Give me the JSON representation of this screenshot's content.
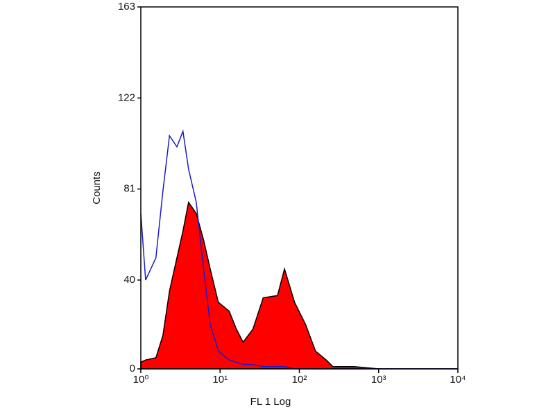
{
  "chart_data": {
    "type": "area",
    "x_label": "FL 1 Log",
    "y_label": "Counts",
    "xscale": "log",
    "xlim": [
      1,
      10000
    ],
    "xticks": [
      {
        "value": 1,
        "label": "10⁰"
      },
      {
        "value": 10,
        "label": "10¹"
      },
      {
        "value": 100,
        "label": "10²"
      },
      {
        "value": 1000,
        "label": "10³"
      },
      {
        "value": 10000,
        "label": "10⁴"
      }
    ],
    "ylim": [
      0,
      163
    ],
    "yticks": [
      0,
      40,
      81,
      122,
      163
    ],
    "x": [
      1,
      1.15,
      1.55,
      1.9,
      2.3,
      2.85,
      3.4,
      4,
      5,
      6.2,
      7.5,
      9.5,
      13,
      16,
      19.5,
      26,
      35,
      53,
      65,
      87,
      120,
      160,
      218,
      265,
      490,
      1000,
      10000
    ],
    "series": [
      {
        "kind": "area",
        "color": "#ff0000",
        "edge_color": "#000000",
        "values": [
          3,
          4,
          5,
          15,
          35,
          50,
          62,
          75,
          70,
          58,
          45,
          30,
          26,
          18,
          12,
          18,
          32,
          33,
          45,
          30,
          20,
          8,
          4,
          1,
          1,
          0,
          0
        ]
      },
      {
        "kind": "line",
        "color": "#1a1acc",
        "values": [
          70,
          40,
          50,
          80,
          105,
          100,
          107,
          90,
          75,
          45,
          20,
          8,
          4,
          3,
          2,
          2,
          1,
          1,
          1,
          0,
          0,
          0,
          0,
          0,
          0,
          0,
          0
        ]
      }
    ]
  }
}
